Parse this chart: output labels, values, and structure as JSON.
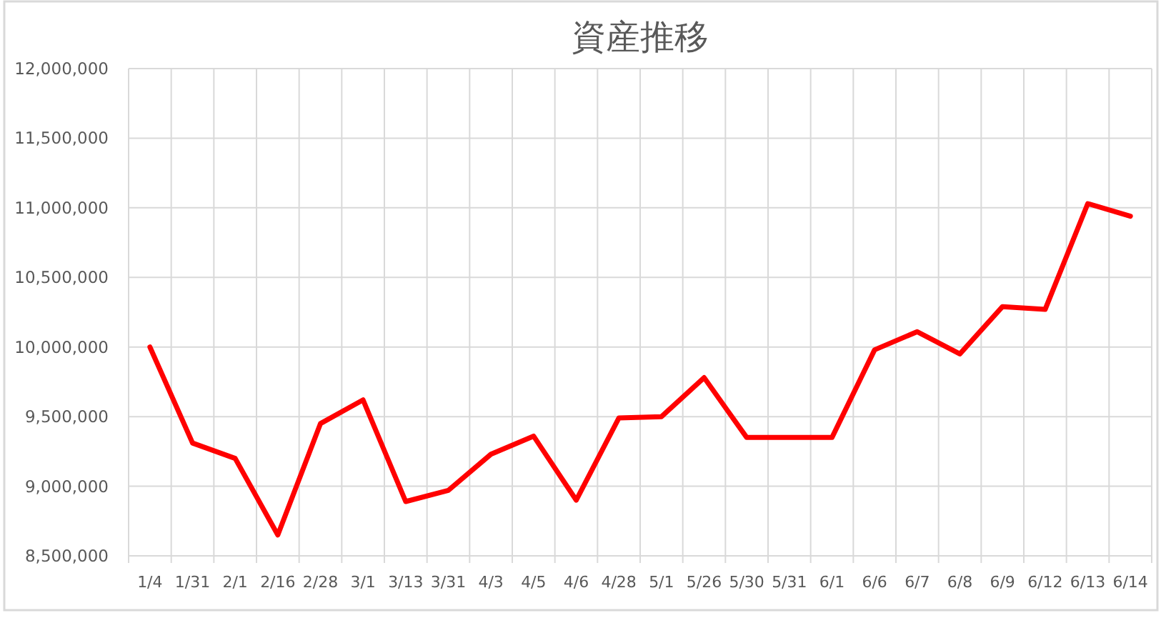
{
  "chart_data": {
    "type": "line",
    "title": "資産推移",
    "categories": [
      "1/4",
      "1/31",
      "2/1",
      "2/16",
      "2/28",
      "3/1",
      "3/13",
      "3/31",
      "4/3",
      "4/5",
      "4/6",
      "4/28",
      "5/1",
      "5/26",
      "5/30",
      "5/31",
      "6/1",
      "6/6",
      "6/7",
      "6/8",
      "6/9",
      "6/12",
      "6/13",
      "6/14"
    ],
    "series": [
      {
        "color": "#ff0000",
        "values": [
          10000000,
          9310000,
          9200000,
          8650000,
          9450000,
          9620000,
          8890000,
          8970000,
          9230000,
          9360000,
          8900000,
          9490000,
          9500000,
          9780000,
          9350000,
          9350000,
          9350000,
          9980000,
          10110000,
          9950000,
          10290000,
          10270000,
          11030000,
          10940000
        ]
      }
    ],
    "ylim": [
      8500000,
      12000000
    ],
    "yticks": [
      {
        "value": 8500000,
        "label": "8,500,000"
      },
      {
        "value": 9000000,
        "label": "9,000,000"
      },
      {
        "value": 9500000,
        "label": "9,500,000"
      },
      {
        "value": 10000000,
        "label": "10,000,000"
      },
      {
        "value": 10500000,
        "label": "10,500,000"
      },
      {
        "value": 11000000,
        "label": "11,000,000"
      },
      {
        "value": 11500000,
        "label": "11,500,000"
      },
      {
        "value": 12000000,
        "label": "12,000,000"
      }
    ],
    "grid": true
  }
}
